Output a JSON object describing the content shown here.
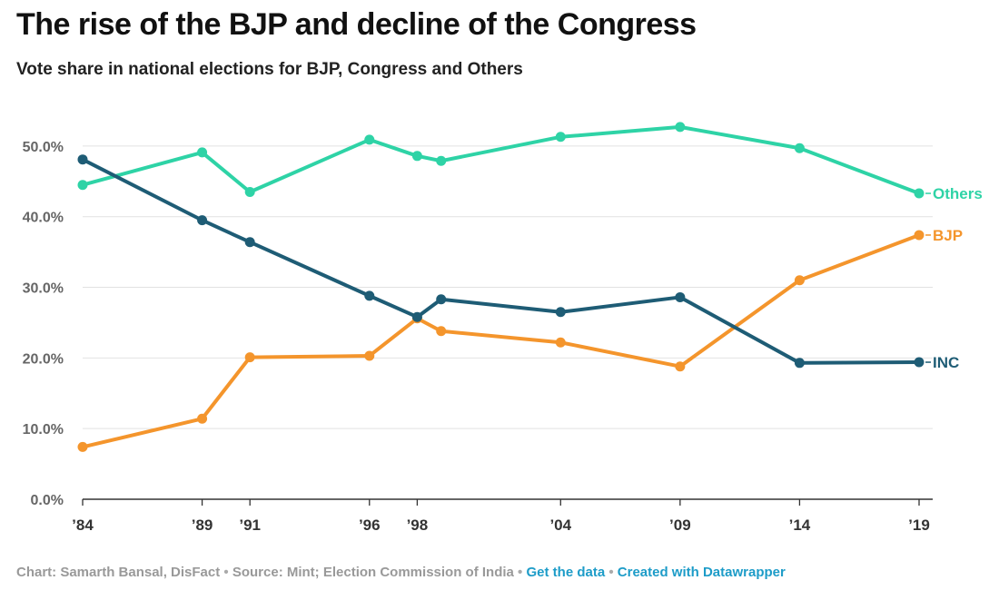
{
  "title": "The rise of the BJP and decline of the Congress",
  "subtitle": "Vote share in national elections for BJP, Congress and Others",
  "chart_data": {
    "type": "line",
    "title": "The rise of the BJP and decline of the Congress",
    "subtitle": "Vote share in national elections for BJP, Congress and Others",
    "xlabel": "",
    "ylabel": "",
    "x": [
      1984,
      1989,
      1991,
      1996,
      1998,
      1999,
      2004,
      2009,
      2014,
      2019
    ],
    "xlim": [
      1984,
      2019
    ],
    "x_ticks": [
      1984,
      1989,
      1991,
      1996,
      1998,
      2004,
      2009,
      2014,
      2019
    ],
    "x_tick_labels": [
      "’84",
      "’89",
      "’91",
      "’96",
      "’98",
      "’04",
      "’09",
      "’14",
      "’19"
    ],
    "ylim": [
      0,
      55
    ],
    "y_ticks": [
      0,
      10,
      20,
      30,
      40,
      50
    ],
    "y_tick_labels": [
      "0.0%",
      "10.0%",
      "20.0%",
      "30.0%",
      "40.0%",
      "50.0%"
    ],
    "grid": true,
    "legend": "direct labels at right end of lines",
    "series": [
      {
        "name": "Others",
        "color": "#2ed3a6",
        "values": [
          44.5,
          49.1,
          43.5,
          50.9,
          48.6,
          47.9,
          51.3,
          52.7,
          49.7,
          43.3
        ]
      },
      {
        "name": "BJP",
        "color": "#f4952c",
        "values": [
          7.4,
          11.4,
          20.1,
          20.3,
          25.6,
          23.8,
          22.2,
          18.8,
          31.0,
          37.4
        ]
      },
      {
        "name": "INC",
        "color": "#1e5c75",
        "values": [
          48.1,
          39.5,
          36.4,
          28.8,
          25.8,
          28.3,
          26.5,
          28.6,
          19.3,
          19.4
        ]
      }
    ]
  },
  "footer": {
    "credit": "Chart: Samarth Bansal, DisFact",
    "separator": "•",
    "source": "Source: Mint; Election Commission of India",
    "get_data": "Get the data",
    "created_with": "Created with Datawrapper"
  }
}
